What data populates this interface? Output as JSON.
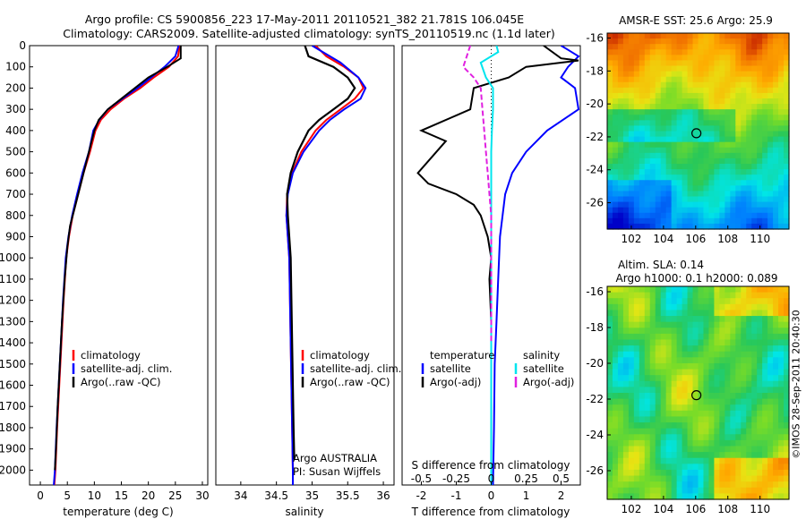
{
  "header": {
    "line1": "Argo profile: CS 5900856_223 17-May-2011 20110521_382 21.781S 106.045E",
    "line2": "Climatology: CARS2009. Satellite-adjusted climatology: synTS_20110519.nc (1.1d later)"
  },
  "credit": "©IMOS 28-Sep-2011 20:40:30",
  "colors": {
    "climatology": "#ff0000",
    "satellite": "#0000ff",
    "argo": "#000000",
    "t_sat": "#0000ff",
    "s_sat": "#00e5ee",
    "s_argo": "#e020e0"
  },
  "chart_data": [
    {
      "type": "line",
      "id": "temperature",
      "xlabel": "temperature (deg C)",
      "xlim": [
        -2,
        31
      ],
      "ylim": [
        2070,
        0
      ],
      "xticks": [
        "0",
        "5",
        "10",
        "15",
        "20",
        "25",
        "30"
      ],
      "yticks": [
        "0",
        "100",
        "200",
        "300",
        "400",
        "500",
        "600",
        "700",
        "800",
        "900",
        "1000",
        "1100",
        "1200",
        "1300",
        "1400",
        "1500",
        "1600",
        "1700",
        "1800",
        "1900",
        "2000"
      ],
      "legend": [
        "climatology",
        "satellite-adj. clim.",
        "Argo(..raw -QC)"
      ],
      "series": [
        {
          "name": "climatology",
          "color": "#ff0000",
          "points": [
            [
              25.8,
              0
            ],
            [
              25.5,
              50
            ],
            [
              23.8,
              100
            ],
            [
              21,
              150
            ],
            [
              18.5,
              200
            ],
            [
              15.5,
              250
            ],
            [
              13,
              300
            ],
            [
              11.2,
              350
            ],
            [
              10.2,
              400
            ],
            [
              9.2,
              500
            ],
            [
              8,
              600
            ],
            [
              7,
              700
            ],
            [
              6,
              800
            ],
            [
              5.3,
              900
            ],
            [
              4.8,
              1000
            ],
            [
              4.3,
              1200
            ],
            [
              3.9,
              1400
            ],
            [
              3.5,
              1600
            ],
            [
              3.1,
              1800
            ],
            [
              2.8,
              2000
            ],
            [
              2.6,
              2070
            ]
          ]
        },
        {
          "name": "satellite-adj. clim.",
          "color": "#0000ff",
          "points": [
            [
              25.6,
              0
            ],
            [
              25,
              50
            ],
            [
              23,
              100
            ],
            [
              20.5,
              150
            ],
            [
              18,
              200
            ],
            [
              15.2,
              250
            ],
            [
              12.5,
              300
            ],
            [
              10.9,
              350
            ],
            [
              9.8,
              400
            ],
            [
              9,
              500
            ],
            [
              7.8,
              600
            ],
            [
              6.8,
              700
            ],
            [
              5.9,
              800
            ],
            [
              5.2,
              900
            ],
            [
              4.7,
              1000
            ],
            [
              4.2,
              1200
            ],
            [
              3.8,
              1400
            ],
            [
              3.4,
              1600
            ],
            [
              3,
              1800
            ],
            [
              2.7,
              2000
            ],
            [
              2.5,
              2070
            ]
          ]
        },
        {
          "name": "Argo(..raw -QC)",
          "color": "#000000",
          "points": [
            [
              26,
              0
            ],
            [
              26,
              60
            ],
            [
              23.5,
              100
            ],
            [
              20,
              150
            ],
            [
              17.5,
              200
            ],
            [
              15,
              250
            ],
            [
              12.5,
              300
            ],
            [
              10.8,
              350
            ],
            [
              10,
              400
            ],
            [
              9.5,
              450
            ],
            [
              8.5,
              550
            ],
            [
              7.5,
              650
            ],
            [
              6.5,
              750
            ],
            [
              5.5,
              850
            ],
            [
              5,
              950
            ],
            [
              4.5,
              1100
            ],
            [
              4,
              1300
            ],
            [
              3.6,
              1500
            ],
            [
              3.2,
              1700
            ],
            [
              2.9,
              1900
            ],
            [
              2.7,
              2000
            ]
          ]
        }
      ]
    },
    {
      "type": "line",
      "id": "salinity",
      "xlabel": "salinity",
      "xlim": [
        33.65,
        36.15
      ],
      "ylim": [
        2070,
        0
      ],
      "xticks": [
        "34",
        "34.5",
        "35",
        "35.5",
        "36"
      ],
      "legend": [
        "climatology",
        "satellite-adj. clim.",
        "Argo(..raw -QC)"
      ],
      "annotation": [
        "Argo AUSTRALIA",
        "PI: Susan Wijffels"
      ],
      "series": [
        {
          "name": "climatology",
          "color": "#ff0000",
          "points": [
            [
              35.05,
              0
            ],
            [
              35.2,
              50
            ],
            [
              35.45,
              100
            ],
            [
              35.65,
              150
            ],
            [
              35.72,
              200
            ],
            [
              35.6,
              250
            ],
            [
              35.4,
              300
            ],
            [
              35.2,
              350
            ],
            [
              35.05,
              400
            ],
            [
              34.85,
              500
            ],
            [
              34.72,
              600
            ],
            [
              34.65,
              700
            ],
            [
              34.64,
              800
            ],
            [
              34.66,
              900
            ],
            [
              34.68,
              1000
            ],
            [
              34.69,
              1200
            ],
            [
              34.7,
              1400
            ],
            [
              34.71,
              1600
            ],
            [
              34.72,
              1800
            ],
            [
              34.73,
              2000
            ],
            [
              34.73,
              2070
            ]
          ]
        },
        {
          "name": "satellite-adj. clim.",
          "color": "#0000ff",
          "points": [
            [
              35.0,
              0
            ],
            [
              35.15,
              30
            ],
            [
              35.4,
              80
            ],
            [
              35.65,
              150
            ],
            [
              35.75,
              200
            ],
            [
              35.68,
              250
            ],
            [
              35.45,
              300
            ],
            [
              35.25,
              350
            ],
            [
              35.1,
              400
            ],
            [
              34.88,
              500
            ],
            [
              34.73,
              600
            ],
            [
              34.66,
              700
            ],
            [
              34.64,
              800
            ],
            [
              34.66,
              900
            ],
            [
              34.68,
              1000
            ],
            [
              34.69,
              1200
            ],
            [
              34.7,
              1400
            ],
            [
              34.71,
              1600
            ],
            [
              34.72,
              1800
            ],
            [
              34.73,
              2000
            ],
            [
              34.73,
              2070
            ]
          ]
        },
        {
          "name": "Argo(..raw -QC)",
          "color": "#000000",
          "points": [
            [
              34.9,
              0
            ],
            [
              34.95,
              50
            ],
            [
              35.3,
              100
            ],
            [
              35.5,
              150
            ],
            [
              35.6,
              200
            ],
            [
              35.5,
              250
            ],
            [
              35.3,
              300
            ],
            [
              35.1,
              350
            ],
            [
              34.95,
              400
            ],
            [
              34.8,
              500
            ],
            [
              34.7,
              600
            ],
            [
              34.65,
              700
            ],
            [
              34.66,
              800
            ],
            [
              34.68,
              900
            ],
            [
              34.7,
              1000
            ],
            [
              34.71,
              1200
            ],
            [
              34.72,
              1400
            ],
            [
              34.73,
              1600
            ],
            [
              34.74,
              1800
            ],
            [
              34.75,
              1950
            ]
          ]
        }
      ]
    },
    {
      "type": "line",
      "id": "difference",
      "xlabel": "T difference from climatology",
      "xlabel_top": "S difference from climatology",
      "xlim": [
        -2.55,
        2.55
      ],
      "ylim": [
        2070,
        0
      ],
      "xticks": [
        "-2",
        "-1",
        "0",
        "1",
        "2"
      ],
      "xticks_top": [
        "-0.5",
        "-0.25",
        "0",
        "0.25",
        "0.5"
      ],
      "legend_headers": [
        "temperature",
        "salinity"
      ],
      "legend": [
        "satellite",
        "Argo(-adj)",
        "satellite",
        "Argo(-adj)"
      ],
      "series": [
        {
          "name": "T satellite",
          "color": "#0000ff",
          "points": [
            [
              2.0,
              0
            ],
            [
              2.2,
              20
            ],
            [
              2.5,
              50
            ],
            [
              2.2,
              100
            ],
            [
              2.0,
              150
            ],
            [
              2.4,
              200
            ],
            [
              2.5,
              300
            ],
            [
              1.6,
              400
            ],
            [
              1.0,
              500
            ],
            [
              0.6,
              600
            ],
            [
              0.4,
              700
            ],
            [
              0.25,
              900
            ],
            [
              0.2,
              1100
            ],
            [
              0.15,
              1300
            ],
            [
              0.1,
              1500
            ],
            [
              0.08,
              1800
            ],
            [
              0.05,
              2070
            ]
          ]
        },
        {
          "name": "T Argo(-adj)",
          "color": "#000000",
          "points": [
            [
              1.5,
              0
            ],
            [
              2.0,
              60
            ],
            [
              2.5,
              70
            ],
            [
              2.0,
              80
            ],
            [
              1.0,
              100
            ],
            [
              0.5,
              150
            ],
            [
              -0.5,
              200
            ],
            [
              -0.6,
              300
            ],
            [
              -2.0,
              400
            ],
            [
              -1.3,
              450
            ],
            [
              -2.1,
              600
            ],
            [
              -1.8,
              650
            ],
            [
              -1.0,
              700
            ],
            [
              -0.5,
              750
            ],
            [
              -0.3,
              800
            ],
            [
              -0.1,
              900
            ],
            [
              0.0,
              1000
            ],
            [
              -0.05,
              1100
            ],
            [
              0.0,
              1300
            ]
          ]
        },
        {
          "name": "S satellite",
          "color": "#00e5ee",
          "points": [
            [
              0.15,
              0
            ],
            [
              0.2,
              30
            ],
            [
              -0.3,
              80
            ],
            [
              -0.15,
              150
            ],
            [
              0.05,
              200
            ],
            [
              0.05,
              300
            ],
            [
              0.02,
              400
            ],
            [
              0.0,
              500
            ],
            [
              0.0,
              700
            ],
            [
              0.0,
              1000
            ],
            [
              0.0,
              1500
            ],
            [
              0.0,
              2070
            ]
          ]
        },
        {
          "name": "S Argo(-adj)",
          "color": "#e020e0",
          "points": [
            [
              -0.6,
              0
            ],
            [
              -0.7,
              50
            ],
            [
              -0.8,
              100
            ],
            [
              -0.5,
              150
            ],
            [
              -0.3,
              200
            ],
            [
              -0.25,
              300
            ],
            [
              -0.2,
              400
            ],
            [
              -0.15,
              500
            ],
            [
              -0.1,
              600
            ],
            [
              -0.05,
              700
            ],
            [
              0.0,
              800
            ],
            [
              0.0,
              1000
            ],
            [
              0.0,
              1200
            ],
            [
              0.0,
              1400
            ]
          ]
        }
      ]
    },
    {
      "type": "heatmap",
      "id": "sst-map",
      "title": "AMSR-E SST: 25.6 Argo: 25.9",
      "xlim": [
        100.5,
        111.8
      ],
      "ylim": [
        -27.6,
        -15.7
      ],
      "xticks": [
        "102",
        "104",
        "106",
        "108",
        "110"
      ],
      "yticks": [
        "-16",
        "-18",
        "-20",
        "-22",
        "-24",
        "-26"
      ],
      "marker": {
        "lon": 106.045,
        "lat": -21.781
      }
    },
    {
      "type": "heatmap",
      "id": "sla-map",
      "title_line1": "Altim. SLA: 0.14",
      "title_line2": "Argo h1000: 0.1 h2000: 0.089",
      "xlim": [
        100.5,
        111.8
      ],
      "ylim": [
        -27.6,
        -15.7
      ],
      "xticks": [
        "102",
        "104",
        "106",
        "108",
        "110"
      ],
      "yticks": [
        "-16",
        "-18",
        "-20",
        "-22",
        "-24",
        "-26"
      ],
      "marker": {
        "lon": 106.045,
        "lat": -21.781
      }
    }
  ]
}
